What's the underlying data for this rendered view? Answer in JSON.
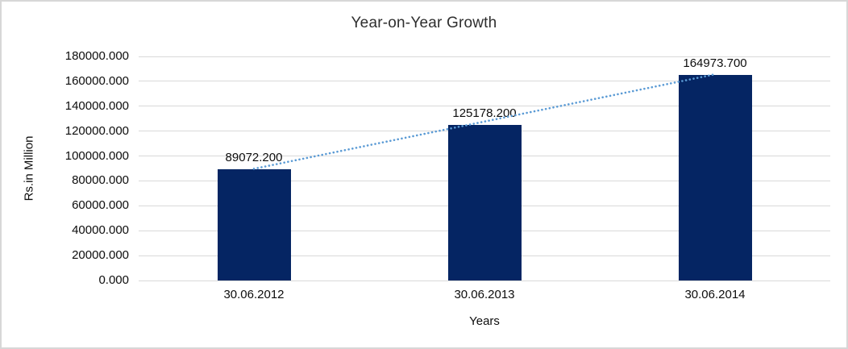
{
  "chart_data": {
    "type": "bar",
    "title": "Year-on-Year Growth",
    "categories": [
      "30.06.2012",
      "30.06.2013",
      "30.06.2014"
    ],
    "values": [
      89072.2,
      125178.2,
      164973.7
    ],
    "data_labels": [
      "89072.200",
      "125178.200",
      "164973.700"
    ],
    "xlabel": "Years",
    "ylabel": "Rs.in Million",
    "ylim": [
      0,
      180000
    ],
    "ytick_step": 20000,
    "ytick_labels": [
      "0.000",
      "20000.000",
      "40000.000",
      "60000.000",
      "80000.000",
      "100000.000",
      "120000.000",
      "140000.000",
      "160000.000",
      "180000.000"
    ],
    "grid": true,
    "legend": "none",
    "trendline": {
      "type": "linear",
      "style": "dotted",
      "spans": "first bar top to last bar top"
    },
    "colors": {
      "bar": "#052563",
      "trendline": "#5b9bd5",
      "gridline": "#d9d9d9",
      "axis_line": "#d9d9d9",
      "title_text": "#2e2e2e",
      "tick_text": "#0d0d0d",
      "background": "#ffffff",
      "frame_border": "#d7d7d7"
    }
  }
}
